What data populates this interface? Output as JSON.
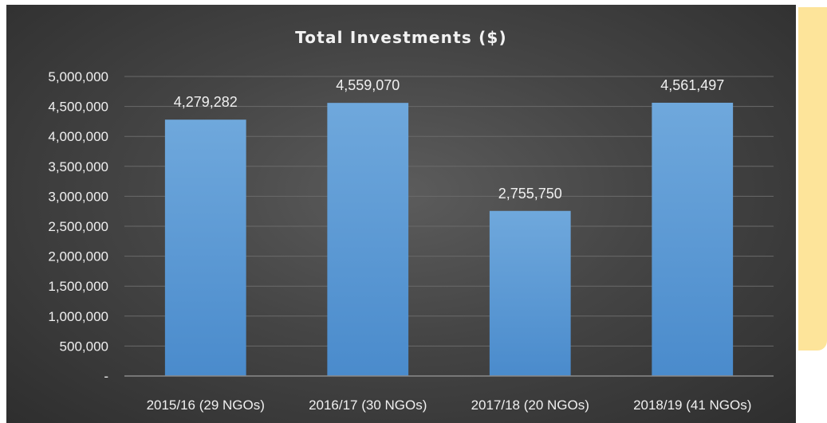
{
  "colors": {
    "panel_background": "#3f3f3f",
    "bar_fill": "#5b9bd5",
    "gridline": "#6a6a6a",
    "text": "#f0f0f0",
    "side_card": "#fde49a"
  },
  "chart_data": {
    "type": "bar",
    "title": "Total Investments ($)",
    "categories": [
      "2015/16 (29 NGOs)",
      "2016/17 (30 NGOs)",
      "2017/18 (20 NGOs)",
      "2018/19 (41 NGOs)"
    ],
    "values": [
      4279282,
      4559070,
      2755750,
      4561497
    ],
    "data_labels": [
      "4,279,282",
      "4,559,070",
      "2,755,750",
      "4,561,497"
    ],
    "xlabel": "",
    "ylabel": "",
    "ylim": [
      0,
      5000000
    ],
    "yticks": [
      0,
      500000,
      1000000,
      1500000,
      2000000,
      2500000,
      3000000,
      3500000,
      4000000,
      4500000,
      5000000
    ],
    "ytick_labels": [
      "-",
      "500,000",
      "1,000,000",
      "1,500,000",
      "2,000,000",
      "2,500,000",
      "3,000,000",
      "3,500,000",
      "4,000,000",
      "4,500,000",
      "5,000,000"
    ],
    "grid": true,
    "legend": "none"
  }
}
